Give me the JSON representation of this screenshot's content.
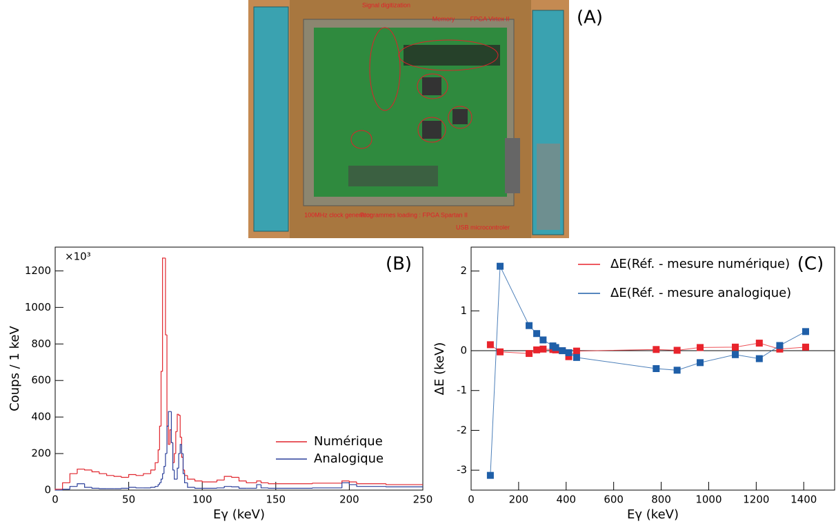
{
  "panel_a": {
    "label": "(A)",
    "annotations": [
      "Signal digitization",
      "Memory",
      "FPGA Virtex II",
      "100MHz clock generator",
      "Programmes loading : FPGA Spartan II",
      "USB microcontroler"
    ]
  },
  "chart_data": [
    {
      "type": "histogram",
      "label": "(B)",
      "multiplier": "×10³",
      "xlabel": "Eγ (keV)",
      "ylabel": "Coups / 1 keV",
      "xlim": [
        0,
        250
      ],
      "ylim": [
        0,
        1330
      ],
      "xticks": [
        0,
        50,
        100,
        150,
        200,
        250
      ],
      "yticks": [
        0,
        200,
        400,
        600,
        800,
        1000,
        1200
      ],
      "bins": [
        0,
        5,
        10,
        15,
        20,
        25,
        30,
        35,
        40,
        45,
        50,
        55,
        60,
        65,
        68,
        70,
        71,
        72,
        73,
        74,
        75,
        76,
        77,
        78,
        79,
        80,
        81,
        82,
        83,
        84,
        85,
        86,
        87,
        88,
        90,
        95,
        100,
        110,
        115,
        120,
        125,
        130,
        137,
        140,
        145,
        150,
        175,
        195,
        200,
        205,
        225,
        250
      ],
      "series": [
        {
          "name": "Numérique",
          "color": "#e0242c",
          "values": [
            5,
            40,
            90,
            115,
            110,
            100,
            90,
            80,
            75,
            70,
            85,
            80,
            90,
            110,
            150,
            220,
            350,
            650,
            1270,
            1270,
            850,
            350,
            250,
            330,
            260,
            150,
            200,
            320,
            415,
            410,
            290,
            180,
            110,
            80,
            60,
            50,
            45,
            55,
            75,
            70,
            50,
            40,
            50,
            40,
            35,
            35,
            38,
            50,
            45,
            35,
            30
          ]
        },
        {
          "name": "Analogique",
          "color": "#2a3f9a",
          "values": [
            0,
            5,
            20,
            35,
            15,
            10,
            8,
            8,
            8,
            10,
            15,
            12,
            12,
            15,
            20,
            30,
            40,
            60,
            90,
            130,
            200,
            350,
            430,
            430,
            260,
            110,
            60,
            60,
            120,
            200,
            250,
            200,
            90,
            40,
            15,
            10,
            10,
            12,
            20,
            18,
            10,
            10,
            30,
            12,
            10,
            10,
            12,
            40,
            30,
            20,
            18
          ]
        }
      ],
      "legend": "lower right"
    },
    {
      "type": "line",
      "label": "(C)",
      "xlabel": "Eγ (keV)",
      "ylabel": "ΔE (keV)",
      "xlim": [
        0,
        1530
      ],
      "ylim": [
        -3.5,
        2.6
      ],
      "xticks": [
        0,
        200,
        400,
        600,
        800,
        1000,
        1200,
        1400
      ],
      "yticks": [
        -3,
        -2,
        -1,
        0,
        1,
        2
      ],
      "x": [
        81,
        122,
        244,
        276,
        303,
        344,
        356,
        384,
        411,
        444,
        779,
        867,
        964,
        1112,
        1213,
        1299,
        1408
      ],
      "series": [
        {
          "name": "ΔE(Réf. - mesure numérique)",
          "color": "#e8242c",
          "values": [
            0.15,
            -0.03,
            -0.07,
            0.02,
            0.04,
            0.03,
            0.02,
            0.0,
            -0.15,
            -0.01,
            0.03,
            0.01,
            0.08,
            0.09,
            0.19,
            0.04,
            0.09
          ]
        },
        {
          "name": "ΔE(Réf. - mesure analogique)",
          "color": "#1f5fa8",
          "values": [
            -3.13,
            2.12,
            0.63,
            0.43,
            0.27,
            0.12,
            0.08,
            0.0,
            -0.05,
            -0.17,
            -0.45,
            -0.49,
            -0.3,
            -0.1,
            -0.2,
            0.13,
            0.48
          ]
        }
      ],
      "legend": "upper right"
    }
  ]
}
